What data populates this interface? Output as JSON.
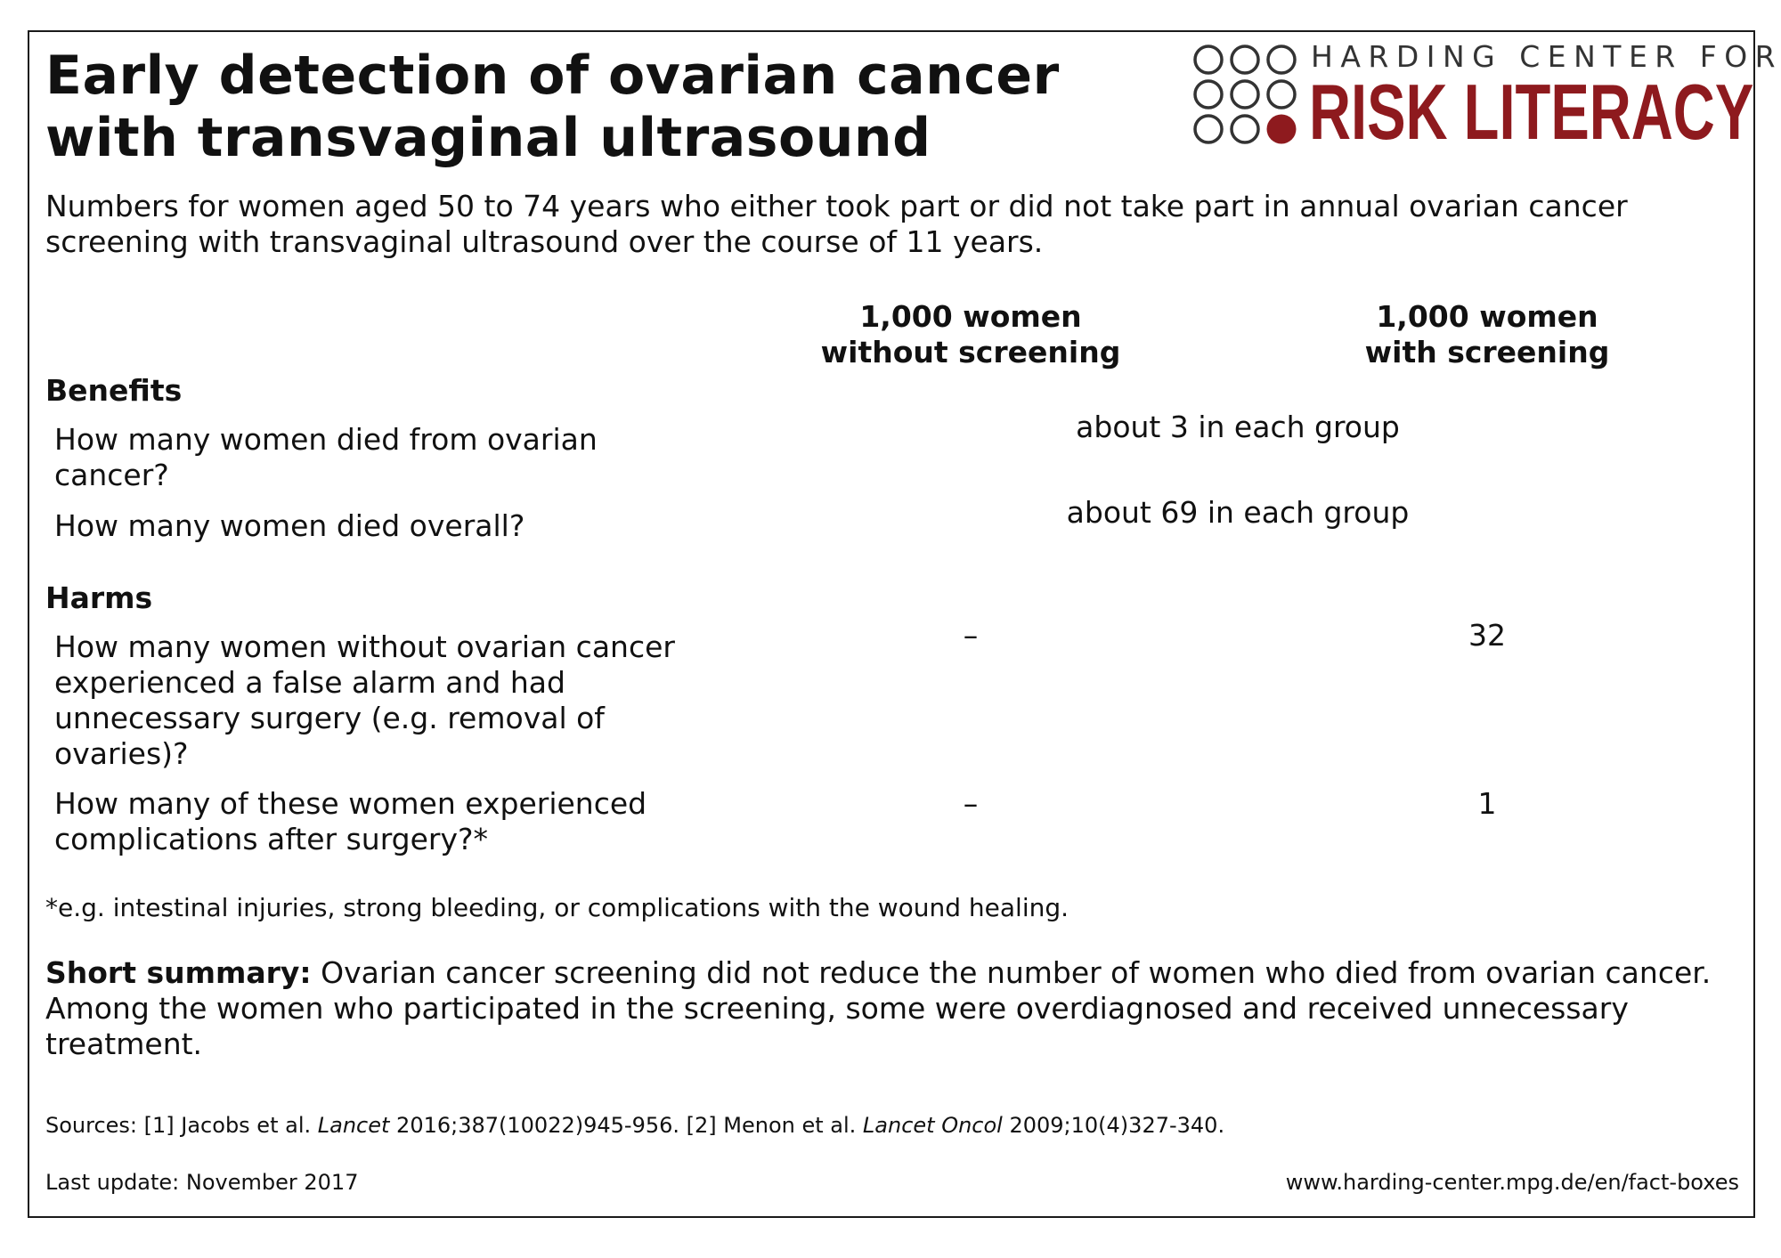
{
  "header": {
    "title_line1": "Early detection of ovarian cancer",
    "title_line2": "with transvaginal ultrasound",
    "subtitle": "Numbers for women aged 50 to 74 years who either took part or did not take part in annual ovarian cancer screening with transvaginal ultrasound over the course of 11 years."
  },
  "logo": {
    "top_text": "HARDING CENTER FOR",
    "bottom_text": "RISK LITERACY",
    "brand_color": "#8e1a1e",
    "dot_grid": "3x3 circles, bottom-right filled"
  },
  "table": {
    "col1": {
      "line1": "1,000 women",
      "line2": "without screening"
    },
    "col2": {
      "line1": "1,000 women",
      "line2": "with screening"
    },
    "benefits": {
      "heading": "Benefits",
      "rows": [
        {
          "question": "How many women died from ovarian cancer?",
          "combined": "about 3 in each group"
        },
        {
          "question": "How many women died overall?",
          "combined": "about 69 in each group"
        }
      ]
    },
    "harms": {
      "heading": "Harms",
      "rows": [
        {
          "question": "How many women without ovarian cancer experienced a false alarm and had unnecessary surgery (e.g. removal of ovaries)?",
          "without": "–",
          "with": "32"
        },
        {
          "question": "How many of these women experienced complications after surgery?*",
          "without": "–",
          "with": "1"
        }
      ]
    }
  },
  "footnote": "*e.g. intestinal injuries, strong bleeding, or complications with the wound healing.",
  "summary": {
    "label": "Short summary:",
    "text": " Ovarian cancer screening did not reduce the number of women who died from ovarian cancer. Among the women who participated in the screening, some were overdiagnosed and received unnecessary treatment."
  },
  "sources": {
    "prefix": "Sources: [1] Jacobs et al. ",
    "journal1": "Lancet",
    "ref1": " 2016;387(10022)945-956. [2] Menon et al. ",
    "journal2": "Lancet Oncol",
    "ref2": " 2009;10(4)327-340."
  },
  "footer": {
    "last_update": "Last update: November 2017",
    "url": "www.harding-center.mpg.de/en/fact-boxes"
  }
}
